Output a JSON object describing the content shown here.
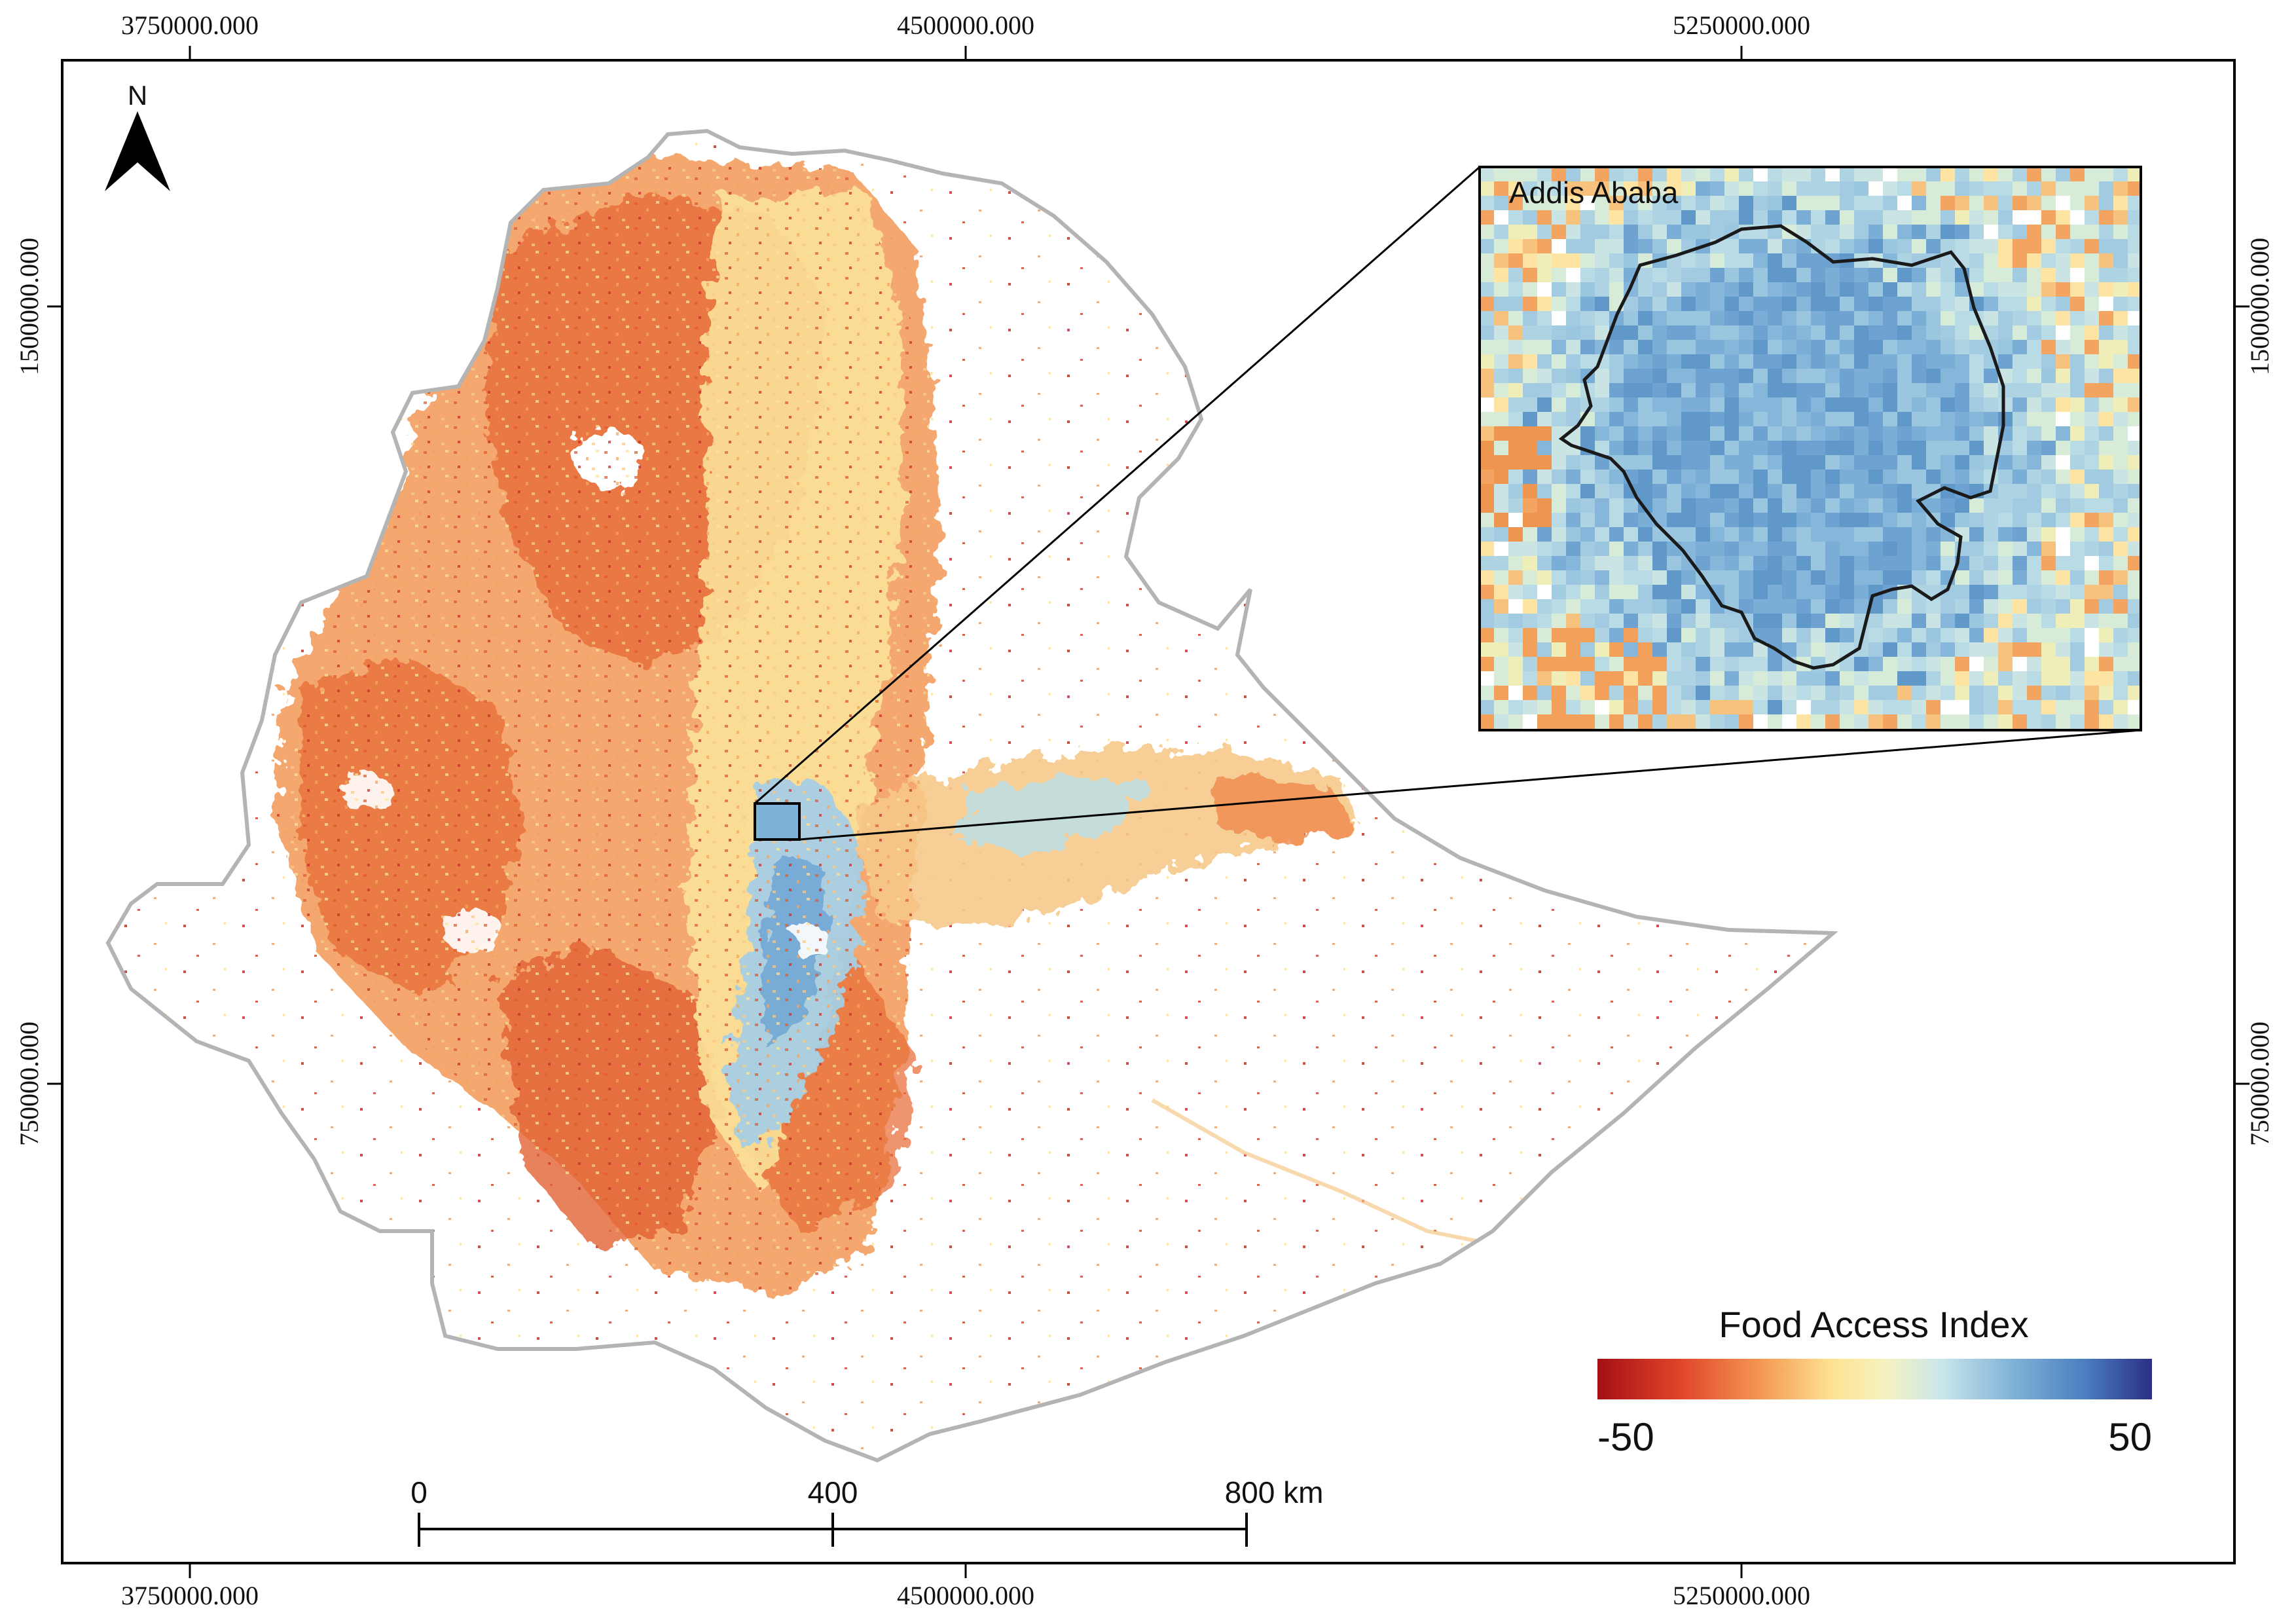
{
  "map": {
    "coordinates": {
      "top": [
        "3750000.000",
        "4500000.000",
        "5250000.000"
      ],
      "bottom": [
        "3750000.000",
        "4500000.000",
        "5250000.000"
      ],
      "left": [
        "1500000.000",
        "750000.000"
      ],
      "right": [
        "1500000.000",
        "750000.000"
      ]
    },
    "north_arrow": {
      "label": "N"
    },
    "inset": {
      "title": "Addis Ababa"
    },
    "legend": {
      "title": "Food Access Index",
      "min_label": "-50",
      "max_label": "50",
      "colors": [
        "#a50f15",
        "#e0452a",
        "#f59b54",
        "#fde191",
        "#f5f3c0",
        "#c9e6ea",
        "#7fb2d8",
        "#4a7ec0",
        "#2b2f85"
      ]
    },
    "scale_bar": {
      "labels": [
        "0",
        "400",
        "800 km"
      ]
    },
    "colors": {
      "country_outline": "#b4b4b4",
      "frame": "#000000"
    }
  }
}
